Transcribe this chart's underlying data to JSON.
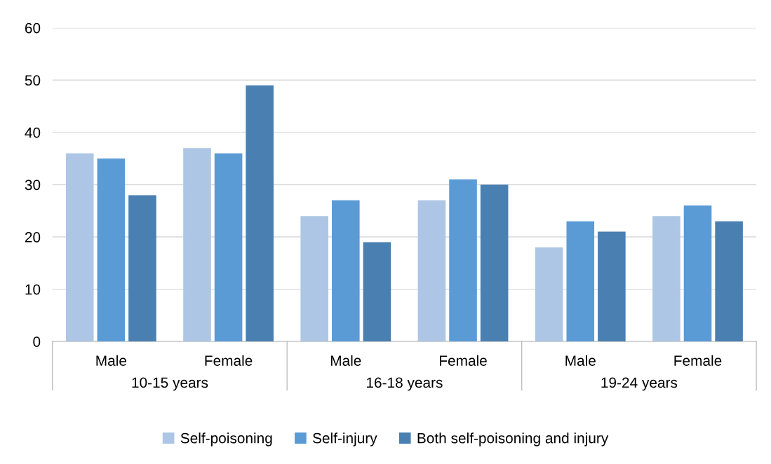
{
  "chart_data": {
    "type": "bar",
    "categories": [
      "Male",
      "Female",
      "Male",
      "Female",
      "Male",
      "Female"
    ],
    "series": [
      {
        "name": "Self-poisoning",
        "color": "#adc6e5",
        "values": [
          36,
          37,
          24,
          27,
          18,
          24
        ]
      },
      {
        "name": "Self-injury",
        "color": "#5b9bd5",
        "values": [
          35,
          36,
          27,
          31,
          23,
          26
        ]
      },
      {
        "name": "Both self-poisoning and injury",
        "color": "#4a7fb1",
        "values": [
          28,
          49,
          19,
          30,
          21,
          23
        ]
      }
    ],
    "annotations": [
      "10-15 years",
      "16-18 years",
      "19-24 years"
    ],
    "ylim": [
      0,
      60
    ],
    "yticks": [
      0,
      10,
      20,
      30,
      40,
      50,
      60
    ],
    "grid": "y",
    "legend": "bottom"
  }
}
